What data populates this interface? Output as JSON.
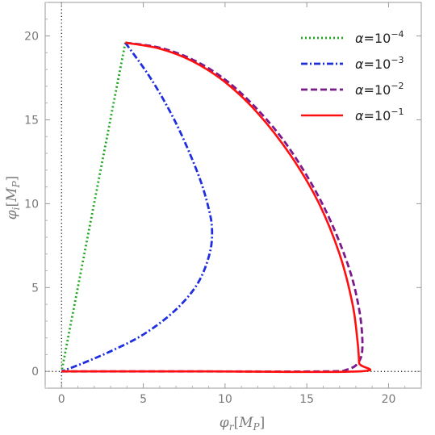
{
  "chart_data": {
    "type": "line",
    "title": "",
    "xlabel": "φr[MP]",
    "ylabel": "φi[MP]",
    "xlim": [
      -1,
      22
    ],
    "ylim": [
      -1,
      22
    ],
    "x_ticks": [
      0,
      5,
      10,
      15,
      20
    ],
    "y_ticks": [
      0,
      5,
      10,
      15,
      20
    ],
    "legend_position": "top-right",
    "grid": false,
    "reference_lines": [
      "x = 0 dotted",
      "y = 0 dotted"
    ],
    "series": [
      {
        "name": "α=10⁻⁴",
        "color": "#1fa81f",
        "dash": "dotted",
        "points": [
          [
            3.9,
            19.6
          ],
          [
            0.0,
            0.0
          ]
        ]
      },
      {
        "name": "α=10⁻³",
        "color": "#1f2fe0",
        "dash": "dashdot",
        "points": [
          [
            3.9,
            19.6
          ],
          [
            5.5,
            17.4
          ],
          [
            7.0,
            14.8
          ],
          [
            8.3,
            11.9
          ],
          [
            8.95,
            9.9
          ],
          [
            9.2,
            8.5
          ],
          [
            9.05,
            7.0
          ],
          [
            8.3,
            5.2
          ],
          [
            6.9,
            3.6
          ],
          [
            5.0,
            2.2
          ],
          [
            3.0,
            1.2
          ],
          [
            1.2,
            0.45
          ],
          [
            0.0,
            0.0
          ]
        ]
      },
      {
        "name": "α=10⁻²",
        "color": "#7b1a8a",
        "dash": "dashed",
        "points": [
          [
            3.9,
            19.6
          ],
          [
            6.0,
            19.3
          ],
          [
            8.0,
            18.6
          ],
          [
            10.0,
            17.4
          ],
          [
            12.0,
            15.6
          ],
          [
            14.0,
            13.2
          ],
          [
            16.0,
            9.9
          ],
          [
            17.5,
            6.4
          ],
          [
            18.2,
            3.7
          ],
          [
            18.4,
            1.6
          ],
          [
            18.2,
            0.6
          ],
          [
            17.5,
            0.12
          ],
          [
            16.0,
            0.0
          ],
          [
            8.0,
            0.0
          ],
          [
            0.0,
            0.0
          ]
        ]
      },
      {
        "name": "α=10⁻¹",
        "color": "#ff1010",
        "dash": "solid",
        "points": [
          [
            3.9,
            19.6
          ],
          [
            6.0,
            19.25
          ],
          [
            8.0,
            18.5
          ],
          [
            10.0,
            17.25
          ],
          [
            12.0,
            15.4
          ],
          [
            14.0,
            12.9
          ],
          [
            15.7,
            10.1
          ],
          [
            17.0,
            7.0
          ],
          [
            17.8,
            4.0
          ],
          [
            18.1,
            1.8
          ],
          [
            18.2,
            0.5
          ],
          [
            18.2,
            0.0
          ],
          [
            9.0,
            0.0
          ],
          [
            0.0,
            0.0
          ]
        ]
      }
    ]
  },
  "legend": {
    "prefix": "α=",
    "base": "10",
    "exponents": [
      "−4",
      "−3",
      "−2",
      "−1"
    ]
  },
  "axes": {
    "x_symbol": "φ",
    "x_sub": "r",
    "y_symbol": "φ",
    "y_sub": "i",
    "unit_symbol": "M",
    "unit_sub": "P"
  }
}
